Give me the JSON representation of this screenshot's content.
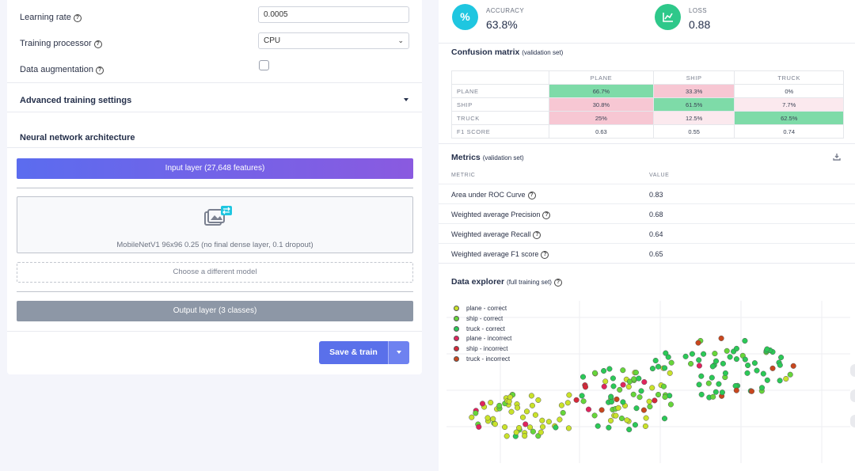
{
  "form": {
    "learning_rate": {
      "label": "Learning rate",
      "value": "0.0005"
    },
    "processor": {
      "label": "Training processor",
      "value": "CPU"
    },
    "augmentation": {
      "label": "Data augmentation",
      "checked": false
    },
    "advanced_title": "Advanced training settings",
    "architecture_title": "Neural network architecture"
  },
  "architecture": {
    "input_layer": "Input layer (27,648 features)",
    "model_desc": "MobileNetV1 96x96 0.25 (no final dense layer, 0.1 dropout)",
    "choose_model": "Choose a different model",
    "output_layer": "Output layer (3 classes)"
  },
  "actions": {
    "save_train": "Save & train"
  },
  "kpis": {
    "accuracy": {
      "label": "ACCURACY",
      "value": "63.8%",
      "icon": "percent-icon",
      "color": "#1fc6e0"
    },
    "loss": {
      "label": "LOSS",
      "value": "0.88",
      "icon": "chart-icon",
      "color": "#2ec88a"
    }
  },
  "confusion": {
    "title": "Confusion matrix",
    "subtitle": "(validation set)",
    "columns": [
      "PLANE",
      "SHIP",
      "TRUCK"
    ],
    "rows": [
      {
        "label": "PLANE",
        "cells": [
          "66.7%",
          "33.3%",
          "0%"
        ]
      },
      {
        "label": "SHIP",
        "cells": [
          "30.8%",
          "61.5%",
          "7.7%"
        ]
      },
      {
        "label": "TRUCK",
        "cells": [
          "25%",
          "12.5%",
          "62.5%"
        ]
      },
      {
        "label": "F1 SCORE",
        "cells": [
          "0.63",
          "0.55",
          "0.74"
        ]
      }
    ]
  },
  "metrics": {
    "title": "Metrics",
    "subtitle": "(validation set)",
    "col_metric": "METRIC",
    "col_value": "VALUE",
    "rows": [
      {
        "name": "Area under ROC Curve",
        "value": "0.83"
      },
      {
        "name": "Weighted average Precision",
        "value": "0.68"
      },
      {
        "name": "Weighted average Recall",
        "value": "0.64"
      },
      {
        "name": "Weighted average F1 score",
        "value": "0.65"
      }
    ]
  },
  "explorer": {
    "title": "Data explorer",
    "subtitle": "(full training set)",
    "legend": [
      {
        "label": "plane - correct",
        "color": "#c9e22a"
      },
      {
        "label": "ship - correct",
        "color": "#66d63a"
      },
      {
        "label": "truck - correct",
        "color": "#2bc957"
      },
      {
        "label": "plane - incorrect",
        "color": "#e0245e"
      },
      {
        "label": "ship - incorrect",
        "color": "#d62839"
      },
      {
        "label": "truck - incorrect",
        "color": "#c8471e"
      }
    ]
  }
}
